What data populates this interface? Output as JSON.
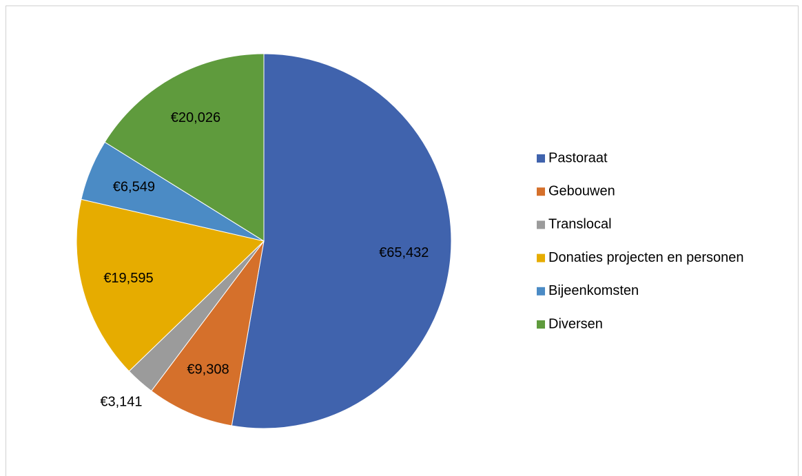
{
  "chart_data": {
    "type": "pie",
    "categories": [
      "Pastoraat",
      "Gebouwen",
      "Translocal",
      "Donaties projecten en personen",
      "Bijeenkomsten",
      "Diversen"
    ],
    "values": [
      65432,
      9308,
      3141,
      19595,
      6549,
      20026
    ],
    "value_labels": [
      "€65,432",
      "€9,308",
      "€3,141",
      "€19,595",
      "€6,549",
      "€20,026"
    ],
    "colors": [
      "#4063ad",
      "#d5702b",
      "#9b9b9b",
      "#e6ac00",
      "#4b8bc5",
      "#5f9b3d"
    ],
    "legend": "right"
  }
}
